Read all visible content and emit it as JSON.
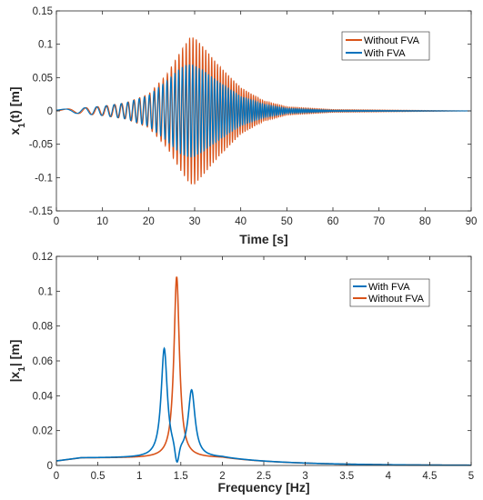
{
  "chart_data": [
    {
      "type": "line",
      "xlabel": "Time [s]",
      "ylabel": "x1(t) [m]",
      "ylabel_main": "x",
      "ylabel_sub": "1",
      "ylabel_rest": "(t) [m]",
      "xlim": [
        0,
        90
      ],
      "ylim": [
        -0.15,
        0.15
      ],
      "xticks": [
        0,
        10,
        20,
        30,
        40,
        50,
        60,
        70,
        80,
        90
      ],
      "xtick_labels": [
        "0",
        "10",
        "20",
        "30",
        "40",
        "50",
        "60",
        "70",
        "80",
        "90"
      ],
      "yticks": [
        -0.15,
        -0.1,
        -0.05,
        0,
        0.05,
        0.1,
        0.15
      ],
      "ytick_labels": [
        "-0.15",
        "-0.1",
        "-0.05",
        "0",
        "0.05",
        "0.1",
        "0.15"
      ],
      "grid": false,
      "legend_position": "top-right",
      "series": [
        {
          "name": "Without FVA",
          "color": "#D95319",
          "envelope": {
            "t": [
              0,
              5,
              10,
              15,
              20,
              24,
              27,
              29,
              30,
              32,
              35,
              40,
              45,
              50,
              60,
              90
            ],
            "amplitude": [
              0.002,
              0.004,
              0.007,
              0.012,
              0.025,
              0.055,
              0.09,
              0.11,
              0.11,
              0.095,
              0.07,
              0.035,
              0.015,
              0.006,
              0.002,
              0.0
            ]
          }
        },
        {
          "name": "With FVA",
          "color": "#0072BD",
          "envelope": {
            "t": [
              0,
              5,
              10,
              15,
              20,
              24,
              27,
              29,
              30,
              32,
              35,
              40,
              45,
              50,
              60,
              90
            ],
            "amplitude": [
              0.002,
              0.004,
              0.007,
              0.012,
              0.023,
              0.045,
              0.065,
              0.07,
              0.068,
              0.06,
              0.045,
              0.022,
              0.01,
              0.004,
              0.001,
              0.0
            ]
          }
        }
      ]
    },
    {
      "type": "line",
      "xlabel": "Frequency [Hz]",
      "ylabel": "|x1| [m]",
      "ylabel_main": "|x",
      "ylabel_sub": "1",
      "ylabel_rest": "| [m]",
      "xlim": [
        0,
        5
      ],
      "ylim": [
        0,
        0.12
      ],
      "xticks": [
        0,
        0.5,
        1,
        1.5,
        2,
        2.5,
        3,
        3.5,
        4,
        4.5,
        5
      ],
      "xtick_labels": [
        "0",
        "0.5",
        "1",
        "1.5",
        "2",
        "2.5",
        "3",
        "3.5",
        "4",
        "4.5",
        "5"
      ],
      "yticks": [
        0,
        0.02,
        0.04,
        0.06,
        0.08,
        0.1,
        0.12
      ],
      "ytick_labels": [
        "0",
        "0.02",
        "0.04",
        "0.06",
        "0.08",
        "0.1",
        "0.12"
      ],
      "grid": false,
      "legend_position": "top-right",
      "series": [
        {
          "name": "With FVA",
          "color": "#0072BD",
          "peaks_hz": [
            1.3,
            1.63
          ],
          "peak_values": [
            0.067,
            0.043
          ]
        },
        {
          "name": "Without FVA",
          "color": "#D95319",
          "peaks_hz": [
            1.45
          ],
          "peak_values": [
            0.109
          ]
        }
      ]
    }
  ]
}
